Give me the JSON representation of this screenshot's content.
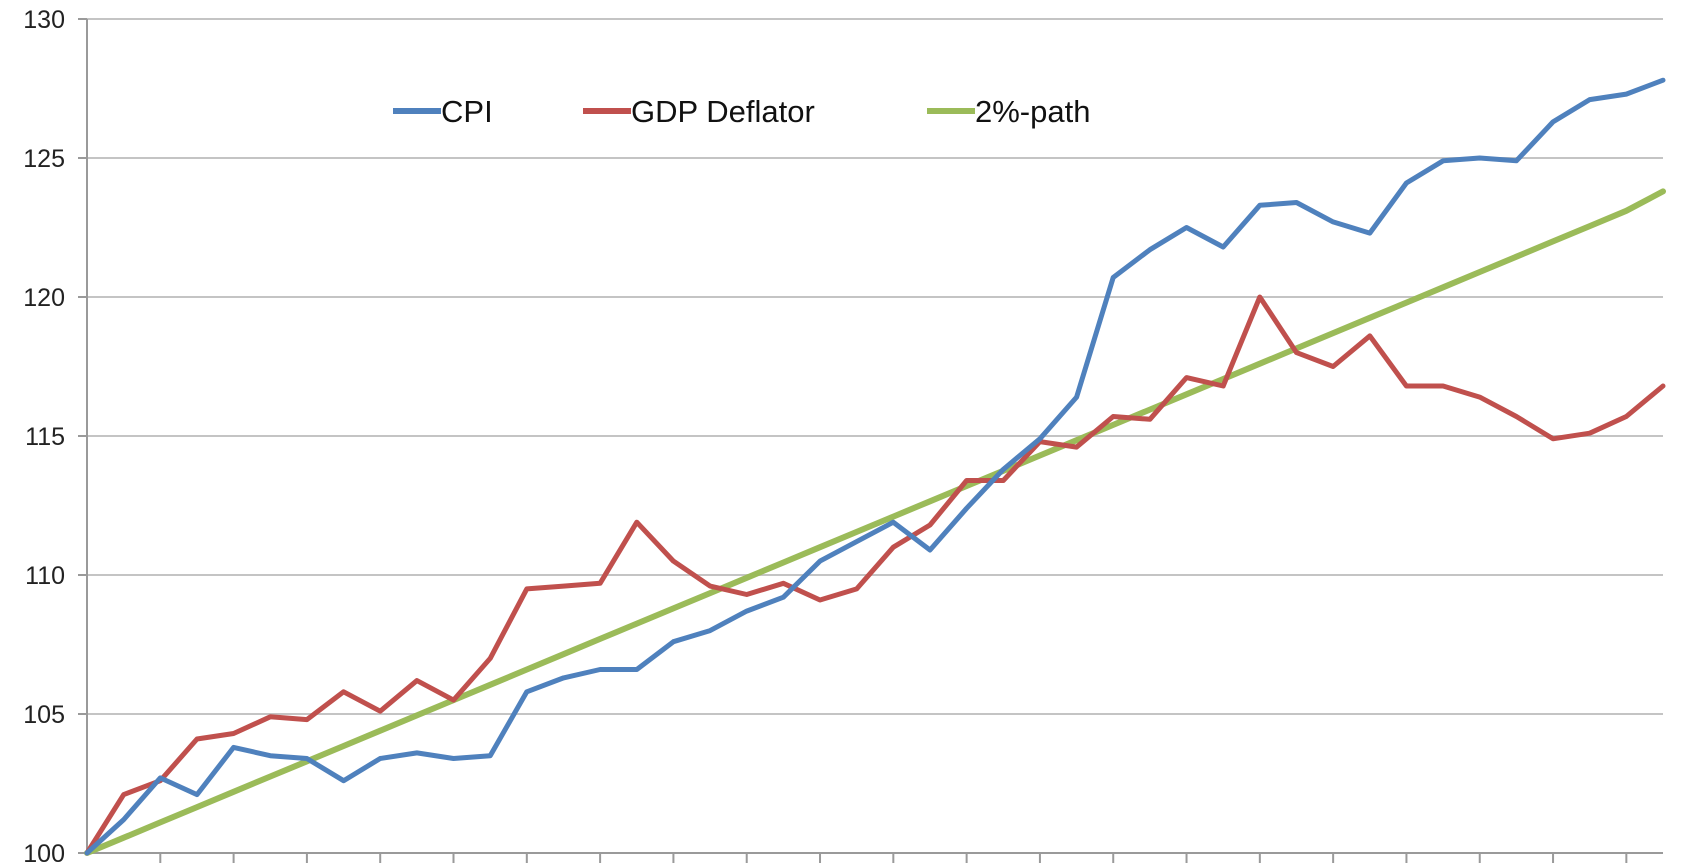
{
  "chart_data": {
    "type": "line",
    "title": "",
    "xlabel": "",
    "ylabel": "",
    "ylim": [
      100,
      130
    ],
    "yticks": [
      100,
      105,
      110,
      115,
      120,
      125,
      130
    ],
    "x": [
      0,
      1,
      2,
      3,
      4,
      5,
      6,
      7,
      8,
      9,
      10,
      11,
      12,
      13,
      14,
      15,
      16,
      17,
      18,
      19,
      20,
      21,
      22,
      23,
      24,
      25,
      26,
      27,
      28,
      29,
      30,
      31,
      32,
      33,
      34,
      35,
      36,
      37,
      38,
      39,
      40,
      41,
      42,
      43
    ],
    "grid": true,
    "legend_position": "top-left",
    "series": [
      {
        "name": "CPI",
        "color": "#4F81BD",
        "values": [
          100.0,
          101.2,
          102.7,
          102.1,
          103.8,
          103.5,
          103.4,
          102.6,
          103.4,
          103.6,
          103.4,
          103.5,
          105.8,
          106.3,
          106.6,
          106.6,
          107.6,
          108.0,
          108.7,
          109.2,
          110.5,
          111.2,
          111.9,
          110.9,
          112.4,
          113.8,
          114.9,
          116.4,
          120.7,
          121.7,
          122.5,
          121.8,
          123.3,
          123.4,
          122.7,
          122.3,
          124.1,
          124.9,
          125.0,
          124.9,
          126.3,
          127.1,
          127.3,
          127.8
        ]
      },
      {
        "name": "GDP Deflator",
        "color": "#C0504D",
        "values": [
          100.0,
          102.1,
          102.6,
          104.1,
          104.3,
          104.9,
          104.8,
          105.8,
          105.1,
          106.2,
          105.5,
          107.0,
          109.5,
          109.6,
          109.7,
          111.9,
          110.5,
          109.6,
          109.3,
          109.7,
          109.1,
          109.5,
          111.0,
          111.8,
          113.4,
          113.4,
          114.8,
          114.6,
          115.7,
          115.6,
          117.1,
          116.8,
          120.0,
          118.0,
          117.5,
          118.6,
          116.8,
          116.8,
          116.4,
          115.7,
          114.9,
          115.1,
          115.7,
          116.8
        ]
      },
      {
        "name": "2%-path",
        "color": "#9BBB59",
        "values": [
          100.0,
          100.55,
          101.1,
          101.65,
          102.2,
          102.75,
          103.3,
          103.85,
          104.4,
          104.95,
          105.5,
          106.05,
          106.6,
          107.15,
          107.7,
          108.25,
          108.8,
          109.35,
          109.9,
          110.45,
          111.0,
          111.55,
          112.1,
          112.65,
          113.2,
          113.75,
          114.3,
          114.85,
          115.4,
          115.95,
          116.5,
          117.05,
          117.6,
          118.15,
          118.7,
          119.25,
          119.8,
          120.35,
          120.9,
          121.45,
          122.0,
          122.55,
          123.1,
          123.8
        ]
      }
    ]
  }
}
